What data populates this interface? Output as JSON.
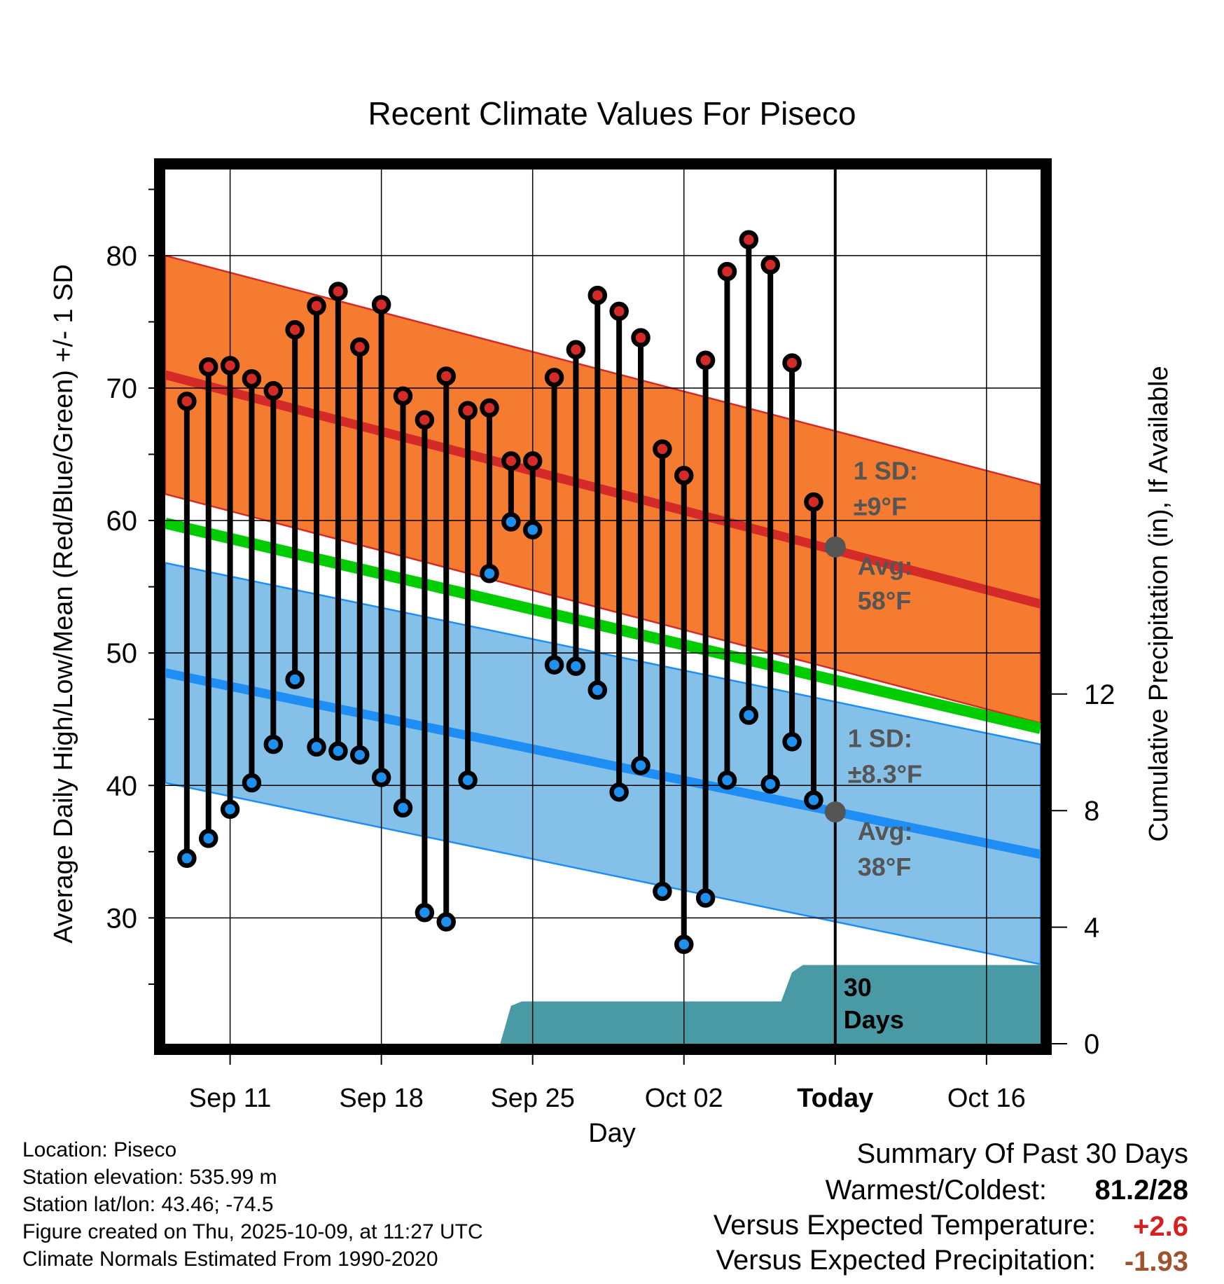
{
  "chart_data": {
    "type": "line",
    "title": "Recent Climate Values For Piseco",
    "xlabel": "Day",
    "ylabel": "Average Daily High/Low/Mean (Red/Blue/Green) +/- 1 SD",
    "ylabel_right": "Cumulative Precipitation (in), If Available",
    "xlim": [
      0,
      40.5
    ],
    "ylim": [
      20.5,
      86.5
    ],
    "y_ticks": [
      30,
      40,
      50,
      60,
      70,
      80
    ],
    "y_minor_ticks": [
      25,
      35,
      45,
      55,
      65,
      75,
      85
    ],
    "precip_lim": [
      0,
      30
    ],
    "precip_ticks": [
      0,
      4,
      8,
      12
    ],
    "x_ticks": [
      {
        "x": 3,
        "label": "Sep 11"
      },
      {
        "x": 10,
        "label": "Sep 18"
      },
      {
        "x": 17,
        "label": "Sep 25"
      },
      {
        "x": 24,
        "label": "Oct 02"
      },
      {
        "x": 31,
        "label": "Today"
      },
      {
        "x": 38,
        "label": "Oct 16"
      }
    ],
    "today_x": 31,
    "normal_high": {
      "start": 71,
      "end": 53.7,
      "sd": 9,
      "start_x": 0,
      "end_x": 40.5
    },
    "normal_low": {
      "start": 48.5,
      "end": 34.8,
      "sd": 8.3,
      "start_x": 0,
      "end_x": 40.5
    },
    "normal_mean": {
      "start": 59.8,
      "end": 44.3,
      "start_x": 0,
      "end_x": 40.5
    },
    "days": [
      {
        "x": 1,
        "high": 69,
        "low": 34.5
      },
      {
        "x": 2,
        "high": 71.6,
        "low": 36
      },
      {
        "x": 3,
        "high": 71.7,
        "low": 38.2
      },
      {
        "x": 4,
        "high": 70.7,
        "low": 40.2
      },
      {
        "x": 5,
        "high": 69.8,
        "low": 43.1
      },
      {
        "x": 6,
        "high": 74.4,
        "low": 48
      },
      {
        "x": 7,
        "high": 76.2,
        "low": 42.9
      },
      {
        "x": 8,
        "high": 77.3,
        "low": 42.6
      },
      {
        "x": 9,
        "high": 73.1,
        "low": 42.3
      },
      {
        "x": 10,
        "high": 76.3,
        "low": 40.6
      },
      {
        "x": 11,
        "high": 69.4,
        "low": 38.3
      },
      {
        "x": 12,
        "high": 67.6,
        "low": 30.4
      },
      {
        "x": 13,
        "high": 70.9,
        "low": 29.7
      },
      {
        "x": 14,
        "high": 68.3,
        "low": 40.4
      },
      {
        "x": 15,
        "high": 68.5,
        "low": 56
      },
      {
        "x": 16,
        "high": 64.5,
        "low": 59.9
      },
      {
        "x": 17,
        "high": 64.5,
        "low": 59.3
      },
      {
        "x": 18,
        "high": 70.8,
        "low": 49.1
      },
      {
        "x": 19,
        "high": 72.9,
        "low": 49
      },
      {
        "x": 20,
        "high": 77,
        "low": 47.2
      },
      {
        "x": 21,
        "high": 75.8,
        "low": 39.5
      },
      {
        "x": 22,
        "high": 73.8,
        "low": 41.5
      },
      {
        "x": 23,
        "high": 65.4,
        "low": 32
      },
      {
        "x": 24,
        "high": 63.4,
        "low": 28
      },
      {
        "x": 25,
        "high": 72.1,
        "low": 31.5
      },
      {
        "x": 26,
        "high": 78.8,
        "low": 40.4
      },
      {
        "x": 27,
        "high": 81.2,
        "low": 45.3
      },
      {
        "x": 28,
        "high": 79.3,
        "low": 40.1
      },
      {
        "x": 29,
        "high": 71.9,
        "low": 43.3
      },
      {
        "x": 30,
        "high": 61.4,
        "low": 38.9
      }
    ],
    "precip": [
      [
        15.5,
        0
      ],
      [
        16,
        1.3
      ],
      [
        16.5,
        1.45
      ],
      [
        17,
        1.45
      ],
      [
        25,
        1.45
      ],
      [
        28,
        1.45
      ],
      [
        28.5,
        1.45
      ],
      [
        29,
        2.45
      ],
      [
        29.5,
        2.7
      ],
      [
        40.5,
        2.7
      ]
    ],
    "annotations": {
      "high_sd": [
        "1 SD:",
        "±9°F"
      ],
      "high_avg": [
        "Avg:",
        "58°F"
      ],
      "low_sd": [
        "1 SD:",
        "±8.3°F"
      ],
      "low_avg": [
        "Avg:",
        "38°F"
      ],
      "days_label": [
        "30",
        "Days"
      ],
      "today_high_avg": 58,
      "today_low_avg": 38
    }
  },
  "footer": {
    "location": "Location: Piseco",
    "elevation": "Station elevation: 535.99 m",
    "latlon": "Station lat/lon: 43.46; -74.5",
    "created": "Figure created on Thu, 2025-10-09, at 11:27 UTC",
    "normals": "Climate Normals Estimated From 1990-2020"
  },
  "summary": {
    "heading": "Summary Of Past 30 Days",
    "warmest_label": "Warmest/Coldest:",
    "warmest_value": "81.2/28",
    "temp_label": "Versus Expected Temperature:",
    "temp_value": "+2.6",
    "temp_color": "#d62020",
    "precip_label": "Versus Expected Precipitation:",
    "precip_value": "-1.93",
    "precip_color": "#a0522d"
  },
  "colors": {
    "high_band": "#f47b30",
    "high_line": "#d42a28",
    "low_band": "#84c0e8",
    "low_line": "#1e8ef5",
    "mean_line": "#00cc00",
    "precip": "#4a9aa5",
    "high_dot": "#d42a28",
    "low_dot": "#1e90f0",
    "annot": "#555555"
  }
}
